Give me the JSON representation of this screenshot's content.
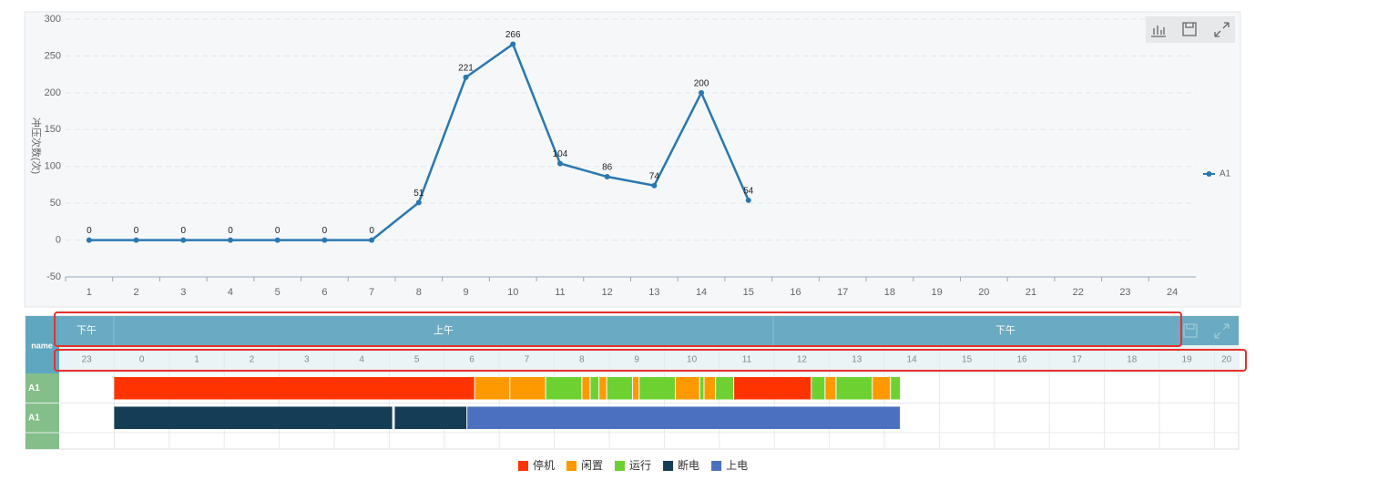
{
  "chart_data": {
    "type": "line",
    "ylabel": "冲压次数(次)",
    "categories": [
      "1",
      "2",
      "3",
      "4",
      "5",
      "6",
      "7",
      "8",
      "9",
      "10",
      "11",
      "12",
      "13",
      "14",
      "15",
      "16",
      "17",
      "18",
      "19",
      "20",
      "21",
      "22",
      "23",
      "24"
    ],
    "series": [
      {
        "name": "A1",
        "color": "#2a78b0",
        "values": [
          0,
          0,
          0,
          0,
          0,
          0,
          0,
          51,
          221,
          266,
          104,
          86,
          74,
          200,
          54,
          null,
          null,
          null,
          null,
          null,
          null,
          null,
          null,
          null
        ]
      }
    ],
    "ylim": [
      -50,
      300
    ],
    "yticks": [
      -50,
      0,
      50,
      100,
      150,
      200,
      250,
      300
    ],
    "grid": true
  },
  "timeline": {
    "header": "name",
    "periods": [
      "下午",
      "上午",
      "下午"
    ],
    "hours": [
      23,
      0,
      1,
      2,
      3,
      4,
      5,
      6,
      7,
      8,
      9,
      10,
      11,
      12,
      13,
      14,
      15,
      16,
      17,
      18,
      19,
      20
    ],
    "legend": [
      {
        "name": "停机",
        "color": "#ff3300"
      },
      {
        "name": "闲置",
        "color": "#ff9900"
      },
      {
        "name": "运行",
        "color": "#6cd131"
      },
      {
        "name": "断电",
        "color": "#153d55"
      },
      {
        "name": "上电",
        "color": "#4a70bf"
      }
    ],
    "rows": [
      {
        "name": "A1",
        "segments": [
          {
            "status": 0,
            "start": 0,
            "end": 6.56
          },
          {
            "status": 1,
            "start": 6.56,
            "end": 7.2
          },
          {
            "status": 1,
            "start": 7.2,
            "end": 7.85
          },
          {
            "status": 2,
            "start": 7.85,
            "end": 8.51
          },
          {
            "status": 1,
            "start": 8.51,
            "end": 8.66
          },
          {
            "status": 2,
            "start": 8.66,
            "end": 8.82
          },
          {
            "status": 1,
            "start": 8.82,
            "end": 8.96
          },
          {
            "status": 2,
            "start": 8.96,
            "end": 9.43
          },
          {
            "status": 1,
            "start": 9.43,
            "end": 9.55
          },
          {
            "status": 2,
            "start": 9.55,
            "end": 10.21
          },
          {
            "status": 1,
            "start": 10.21,
            "end": 10.65
          },
          {
            "status": 2,
            "start": 10.65,
            "end": 10.73
          },
          {
            "status": 1,
            "start": 10.73,
            "end": 10.94
          },
          {
            "status": 2,
            "start": 10.94,
            "end": 11.27
          },
          {
            "status": 0,
            "start": 11.27,
            "end": 12.68
          },
          {
            "status": 2,
            "start": 12.68,
            "end": 12.93
          },
          {
            "status": 1,
            "start": 12.93,
            "end": 13.13
          },
          {
            "status": 2,
            "start": 13.13,
            "end": 13.79
          },
          {
            "status": 1,
            "start": 13.79,
            "end": 14.12
          },
          {
            "status": 2,
            "start": 14.12,
            "end": 14.3
          }
        ]
      },
      {
        "name": "A1",
        "segments": [
          {
            "status": 3,
            "start": 0,
            "end": 5.07
          },
          {
            "status": 3,
            "start": 5.1,
            "end": 6.42
          },
          {
            "status": 4,
            "start": 6.42,
            "end": 14.3
          }
        ]
      }
    ]
  }
}
